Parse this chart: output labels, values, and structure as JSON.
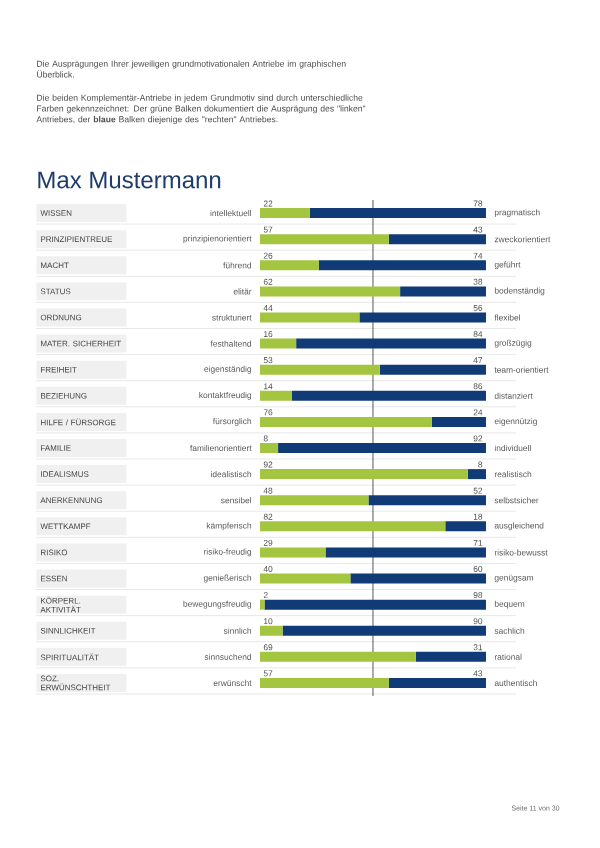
{
  "chart_data": {
    "type": "bar",
    "orientation": "horizontal",
    "stacked": true,
    "data_labels": true,
    "title": "Max Mustermann",
    "subtitle": "Die Ausprägungen Ihrer jeweiligen grundmotivationalen Antriebe im graphischen Überblick.",
    "categories": [
      "WISSEN",
      "PRINZIPIENTREUE",
      "MACHT",
      "STATUS",
      "ORDNUNG",
      "MATER. SICHERHEIT",
      "FREIHEIT",
      "BEZIEHUNG",
      "HILFE / FÜRSORGE",
      "FAMILIE",
      "IDEALISMUS",
      "ANERKENNUNG",
      "WETTKAMPF",
      "RISIKO",
      "ESSEN",
      "KÖRPERL. AKTIVITÄT",
      "SINNLICHKEIT",
      "SPIRITUALITÄT",
      "SOZ. ERWÜNSCHTHEIT"
    ],
    "series": [
      {
        "color": "#a3c53f",
        "values": [
          22,
          57,
          26,
          62,
          44,
          16,
          53,
          14,
          76,
          8,
          92,
          48,
          82,
          29,
          40,
          2,
          10,
          69,
          57
        ]
      },
      {
        "color": "#113b77",
        "values": [
          78,
          43,
          74,
          38,
          56,
          84,
          47,
          86,
          24,
          92,
          8,
          52,
          18,
          71,
          60,
          98,
          90,
          31,
          43
        ]
      }
    ],
    "xlim": [
      0,
      100
    ],
    "ref_lines": [
      {
        "axis": "x",
        "value": 50,
        "color": "#555555"
      }
    ],
    "annotations": [
      "intellektuell",
      "pragmatisch",
      "prinzipienorientiert",
      "zweckorientiert",
      "führend",
      "geführt",
      "elitär",
      "bodenständig",
      "strukturiert",
      "flexibel",
      "festhaltend",
      "großzügig",
      "eigenständig",
      "team-orientiert",
      "kontaktfreudig",
      "distanziert",
      "fürsorglich",
      "eigennützig",
      "familienorientiert",
      "individuell",
      "idealistisch",
      "realistisch",
      "sensibel",
      "selbstsicher",
      "kämpferisch",
      "ausgleichend",
      "risiko-freudig",
      "risiko-bewusst",
      "genießerisch",
      "genügsam",
      "bewegungsfreudig",
      "bequem",
      "sinnlich",
      "sachlich",
      "sinnsuchend",
      "rational",
      "erwünscht",
      "authentisch",
      "Die beiden Komplementär-Antriebe in jedem Grundmotiv sind durch unterschiedliche Farben gekennzeichnet: Der grüne Balken dokumentiert die Ausprägung des \"linken\" Antriebes, der **blaue** Balken diejenige des \"rechten\" Antriebes.",
      "Seite 11 von 30"
    ]
  }
}
